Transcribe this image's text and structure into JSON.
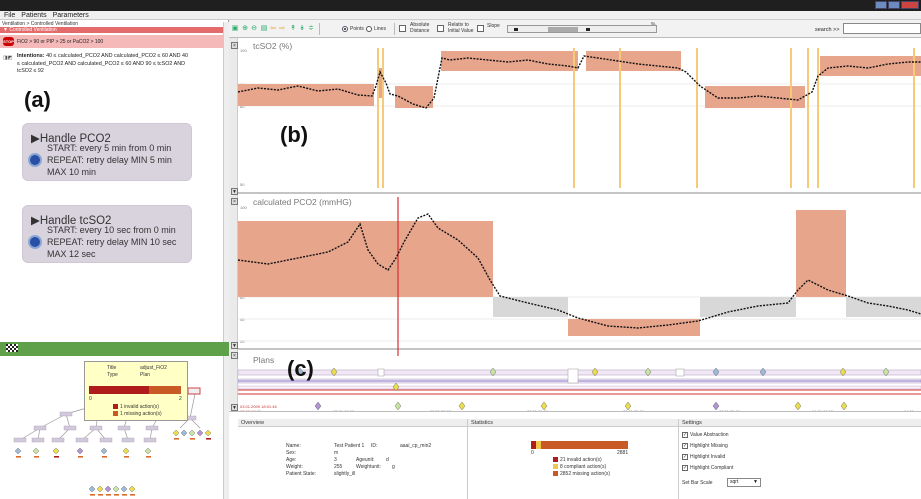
{
  "menu": [
    "File",
    "Patients",
    "Parameters"
  ],
  "left": {
    "breadcrumb": "Ventilation > Controlled Ventilation",
    "section": "Controlled Ventilation",
    "stop_badge": "STOP",
    "stop_condition": "FiO2 > 90 or PIP > 25 or PaCO2 > 100",
    "intentions_label": "Intentions:",
    "intentions_line1": "40 ≤ calculated_PCO2 AND calculated_PCO2 ≤ 60 AND 40",
    "intentions_line2": "≤ calculated_PCO2 AND calculated_PCO2 ≤ 60 AND 90 ≤ tcSO2 AND",
    "intentions_line3": "tcSO2 ≤ 92",
    "label_a": "(a)",
    "plans": [
      {
        "title": "Handle PCO2",
        "start": "START: every 5 min from 0 min",
        "repeat": "REPEAT: retry delay MIN 5 min",
        "max": "MAX 10 min"
      },
      {
        "title": "Handle tcSO2",
        "start": "START: every 10 sec from 0 min",
        "repeat": "REPEAT: retry delay MIN 10 sec",
        "max": "MAX 12 sec"
      }
    ],
    "tooltip": {
      "title_k": "Title",
      "title_v": "adjust_FiO2",
      "type_k": "Type",
      "type_v": "Plan",
      "axis_min": "0",
      "axis_max": "2",
      "invalid": "1 invalid action(s)",
      "missing": "1 missing action(s)"
    }
  },
  "toolbar": {
    "points_label": "Points",
    "lines_label": "Lines",
    "absolute_distance": "Absolute Distance",
    "relative_initial": "Relativ to Initial Value",
    "slope": "Slope",
    "percent": "%",
    "search_label": "search >>"
  },
  "charts": {
    "label_b": "(b)",
    "label_c": "(c)",
    "tcso2_title": "tcSO2 (%)",
    "pco2_title": "calculated PCO2 (mmHG)",
    "plans_title": "Plans",
    "tcso2_ticks": [
      "100",
      "90",
      "80",
      "50"
    ],
    "pco2_ticks": [
      "100",
      "60",
      "40",
      "20"
    ],
    "time_start": "03.01.2009 18:01:46",
    "time_labels": [
      "03.01 18:00",
      "03.01 19:00",
      "03.01 20:00",
      "03.01 21:00",
      "03.01 22:00",
      "03.01 23:00",
      "04.01 00:00",
      "04.01"
    ]
  },
  "info": {
    "overview_title": "Overview",
    "statistics_title": "Statistics",
    "settings_title": "Settings",
    "name_k": "Name:",
    "name_v": "Test Patient 1",
    "id_k": "ID:",
    "id_v": "aaai_cp_min2",
    "sex_k": "Sex:",
    "sex_v": "m",
    "age_k": "Age:",
    "age_v": "3",
    "ageunit_k": "Ageunit:",
    "ageunit_v": "d",
    "weight_k": "Weight:",
    "weight_v": "255",
    "weightunit_k": "Weightunit:",
    "weightunit_v": "g",
    "state_k": "Patient State:",
    "state_v": "slightly_ill",
    "stat_min": "0",
    "stat_max": "2881",
    "stat_invalid": "21 invalid action(s)",
    "stat_compliant": "8 compliant action(s)",
    "stat_missing": "2852 missing action(s)",
    "settings": [
      "Value Abstraction",
      "Highlight Missing",
      "Highlight Invalid",
      "Highlight Compliant"
    ],
    "scale_label": "Set Bar Scale",
    "scale_value": "sqrt"
  },
  "colors": {
    "band": "#e7a58c",
    "stop_red": "#cc0000",
    "red_line": "#d63030",
    "orange_mark": "#f7c97a",
    "plan_purple": "#d9d3de",
    "bar_red": "#b01c1c",
    "bar_yellow": "#f2c84b",
    "bar_orange": "#c85a26"
  }
}
